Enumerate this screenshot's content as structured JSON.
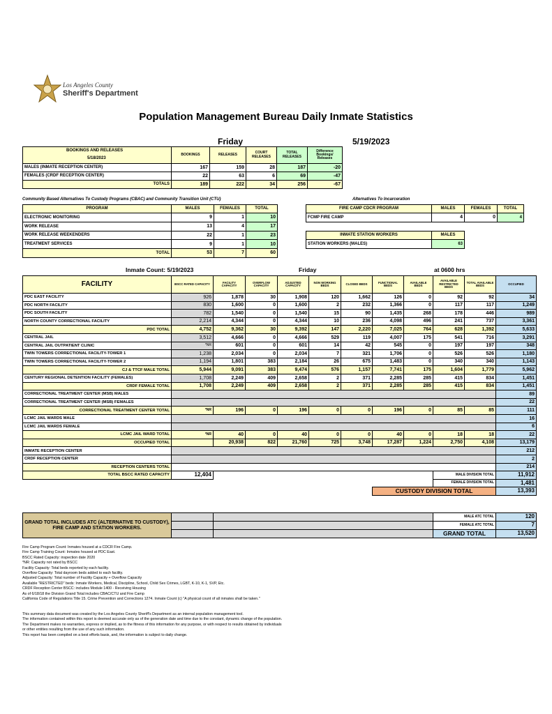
{
  "header": {
    "agency_line1": "Los Angeles County",
    "agency_line2": "Sheriff's Department",
    "title": "Population Management Bureau Daily Inmate Statistics"
  },
  "report": {
    "day": "Friday",
    "date": "5/19/2023"
  },
  "bookings": {
    "headers": [
      "BOOKINGS AND RELEASES",
      "BOOKINGS",
      "RELEASES",
      "COURT RELEASES",
      "TOTAL RELEASES",
      "Difference Bookings/ Releases"
    ],
    "date": "5/18/2023",
    "rows": [
      [
        "MALES (INMATE RECEPTION CENTER)",
        "167",
        "159",
        "28",
        "187",
        "-20"
      ],
      [
        "FEMALES (CRDF RECEPTION CENTER)",
        "22",
        "63",
        "6",
        "69",
        "-47"
      ],
      [
        "TOTALS",
        "189",
        "222",
        "34",
        "256",
        "-67"
      ]
    ]
  },
  "cbac": {
    "caption": "Community Based Alternatives To Custody Programs (CBAC) and Community Transition Unit (CTU)",
    "headers": [
      "PROGRAM",
      "MALES",
      "FEMALES",
      "TOTAL"
    ],
    "rows": [
      [
        "ELECTRONIC MONITORING",
        "9",
        "1",
        "10"
      ],
      [
        "WORK RELEASE",
        "13",
        "4",
        "17"
      ],
      [
        "WORK RELEASE WEEKENDERS",
        "22",
        "1",
        "23"
      ],
      [
        "TREATMENT SERVICES",
        "9",
        "1",
        "10"
      ],
      [
        "TOTAL",
        "53",
        "7",
        "60"
      ]
    ]
  },
  "alternatives": {
    "caption": "Alternatives To Incarceration",
    "fire_camp": {
      "headers": [
        "FIRE CAMP CDCR PROGRAM",
        "MALES",
        "FEMALES",
        "TOTAL"
      ],
      "rows": [
        [
          "FCMP FIRE CAMP",
          "4",
          "0",
          "4"
        ]
      ]
    },
    "station_workers": {
      "headers": [
        "INMATE STATION WORKERS",
        "MALES"
      ],
      "rows": [
        [
          "STATION WORKERS (MALES)",
          "63"
        ]
      ]
    }
  },
  "facilities": {
    "count_label": "Inmate Count: 5/19/2023",
    "day": "Friday",
    "time": "at 0600 hrs",
    "headers": [
      "FACILITY",
      "BSCC RATED CAPACITY",
      "FACILITY CAPACITY",
      "OVERFLOW CAPACITY",
      "ADJUSTED CAPACITY",
      "NON WORKING BEDS",
      "CLOSED BEDS",
      "FUNCTIONAL BEDS",
      "AVAILABLE BEDS",
      "AVAILABLE RESTRICTED BEDS",
      "TOTAL AVAILABLE BEDS",
      "OCCUPIED"
    ],
    "rows": [
      [
        "PDC EAST FACILITY",
        "926",
        "1,878",
        "30",
        "1,908",
        "120",
        "1,662",
        "126",
        "0",
        "92",
        "92",
        "34"
      ],
      [
        "PDC NORTH FACILITY",
        "830",
        "1,600",
        "0",
        "1,600",
        "2",
        "232",
        "1,366",
        "0",
        "117",
        "117",
        "1,249"
      ],
      [
        "PDC SOUTH FACILITY",
        "782",
        "1,540",
        "0",
        "1,540",
        "15",
        "90",
        "1,435",
        "268",
        "178",
        "446",
        "989"
      ],
      [
        "NORTH COUNTY CORRECTIONAL FACILITY",
        "2,214",
        "4,344",
        "0",
        "4,344",
        "10",
        "236",
        "4,098",
        "496",
        "241",
        "737",
        "3,361"
      ],
      [
        "PDC TOTAL",
        "4,752",
        "9,362",
        "30",
        "9,392",
        "147",
        "2,220",
        "7,025",
        "764",
        "628",
        "1,392",
        "5,633"
      ],
      [
        "CENTRAL JAIL",
        "3,512",
        "4,666",
        "0",
        "4,666",
        "529",
        "119",
        "4,007",
        "175",
        "541",
        "716",
        "3,291"
      ],
      [
        "CENTRAL JAIL OUTPATIENT CLINIC",
        "*NR",
        "601",
        "0",
        "601",
        "14",
        "42",
        "545",
        "0",
        "197",
        "197",
        "348"
      ],
      [
        "TWIN TOWERS CORRECTIONAL FACILITY-TOWER 1",
        "1,238",
        "2,034",
        "0",
        "2,034",
        "7",
        "321",
        "1,706",
        "0",
        "526",
        "526",
        "1,180"
      ],
      [
        "TWIN TOWERS CORRECTIONAL FACILITY-TOWER 2",
        "1,194",
        "1,801",
        "383",
        "2,184",
        "26",
        "675",
        "1,483",
        "0",
        "340",
        "340",
        "1,143"
      ],
      [
        "CJ & TTCF MALE TOTAL",
        "5,944",
        "9,091",
        "383",
        "9,474",
        "576",
        "1,157",
        "7,741",
        "175",
        "1,604",
        "1,779",
        "5,962"
      ],
      [
        "CENTURY REGIONAL DETENTION FACILITY (FEMALES)",
        "1,708",
        "2,249",
        "409",
        "2,658",
        "2",
        "371",
        "2,285",
        "285",
        "415",
        "834",
        "1,451"
      ],
      [
        "CRDF FEMALE TOTAL",
        "1,708",
        "2,249",
        "409",
        "2,658",
        "2",
        "371",
        "2,285",
        "285",
        "415",
        "834",
        "1,451"
      ],
      [
        "CORRECTIONAL TREATMENT CENTER (MSB) MALES",
        null,
        null,
        null,
        null,
        null,
        null,
        null,
        null,
        null,
        null,
        "89"
      ],
      [
        "CORRECTIONAL TREATMENT CENTER (MSB) FEMALES",
        null,
        null,
        null,
        null,
        null,
        null,
        null,
        null,
        null,
        null,
        "22"
      ],
      [
        "CORRECTIONAL TREATMENT CENTER TOTAL",
        "*NR",
        "196",
        "0",
        "196",
        "0",
        "0",
        "196",
        "0",
        "85",
        "85",
        "111"
      ],
      [
        "LCMC JAIL WARDS MALE",
        null,
        null,
        null,
        null,
        null,
        null,
        null,
        null,
        null,
        null,
        "16"
      ],
      [
        "LCMC JAIL WARDS FEMALE",
        null,
        null,
        null,
        null,
        null,
        null,
        null,
        null,
        null,
        null,
        "6"
      ],
      [
        "LCMC JAIL WARD TOTAL",
        "*NR",
        "40",
        "0",
        "40",
        "0",
        "0",
        "40",
        "0",
        "18",
        "18",
        "22"
      ],
      [
        "OCCUPIED TOTAL",
        null,
        "20,938",
        "822",
        "21,760",
        "725",
        "3,748",
        "17,287",
        "1,224",
        "2,750",
        "4,108",
        "13,179"
      ],
      [
        "INMATE RECEPTION CENTER",
        null,
        null,
        null,
        null,
        null,
        null,
        null,
        null,
        null,
        null,
        "212"
      ],
      [
        "CRDF RECEPTION CENTER",
        null,
        null,
        null,
        null,
        null,
        null,
        null,
        null,
        null,
        null,
        "2"
      ],
      [
        "RECEPTION CENTERS TOTAL",
        null,
        null,
        null,
        null,
        null,
        null,
        null,
        null,
        null,
        null,
        "214"
      ]
    ]
  },
  "summary": {
    "bscc_label": "TOTAL BSCC RATED CAPACITY",
    "bscc_value": "12,404",
    "male_label": "MALE DIVISION TOTAL",
    "male_value": "11,912",
    "female_label": "FEMALE DIVISION TOTAL",
    "female_value": "1,481",
    "custody_label": "CUSTODY DIVISION TOTAL",
    "custody_value": "13,393"
  },
  "grand_total": {
    "note": "GRAND TOTAL INCLUDES ATC (ALTERNATIVE TO CUSTODY), FIRE CAMP AND STATION WORKERS.",
    "rows": [
      [
        "MALE ATC TOTAL",
        "120"
      ],
      [
        "FEMALE ATC TOTAL",
        "7"
      ],
      [
        "GRAND TOTAL",
        "13,520"
      ]
    ]
  },
  "footnotes": [
    "Fire Camp Program Count: Inmates housed at a CDCR Fire Camp.",
    "Fire Camp Training Count: Inmates housed at PDC East.",
    "BSCC Rated Capacity: inspection date 2020",
    "*NR: Capacity not rated by BSCC",
    "Facility Capacity: Total beds reported by each facility.",
    "Overflow Capacity: Total dayroom beds added to each facility.",
    "Adjusted Capacity: Total number of Facility Capacity + Overflow Capacity",
    "Available \"RESTRICTED\" beds: Inmate Workers, Medical, Discipline, School, Child Sex Crimes, LGBT, K-10, K-1, SVP, Etc.",
    "CRDF Reception Center BSCC: includes Module 1400 - Receiving Housing",
    "As of 6/18/18 the Division Grand Total includes CBAC/CTU and Fire Camp",
    "California Code of Regulations Title 15. Crime Prevention and Corrections 1274. Inmate Count (c) \"A physical count of all inmates shall be taken.\""
  ],
  "disclaimer": [
    "This summary data document was created by the Los Angeles County Sheriff's Department as an internal population management tool.",
    "The information contained within this report is deemed accurate only as of the generation date and time due to the constant, dynamic change of the population.",
    "The Department makes no warranties, express or implied, as to the fitness of this information for any purpose, or with respect to results obtained by individuals",
    "or other entities resulting from the use of any such information.",
    "This report has been compiled on a best efforts basis, and, the information is subject to daily change."
  ]
}
